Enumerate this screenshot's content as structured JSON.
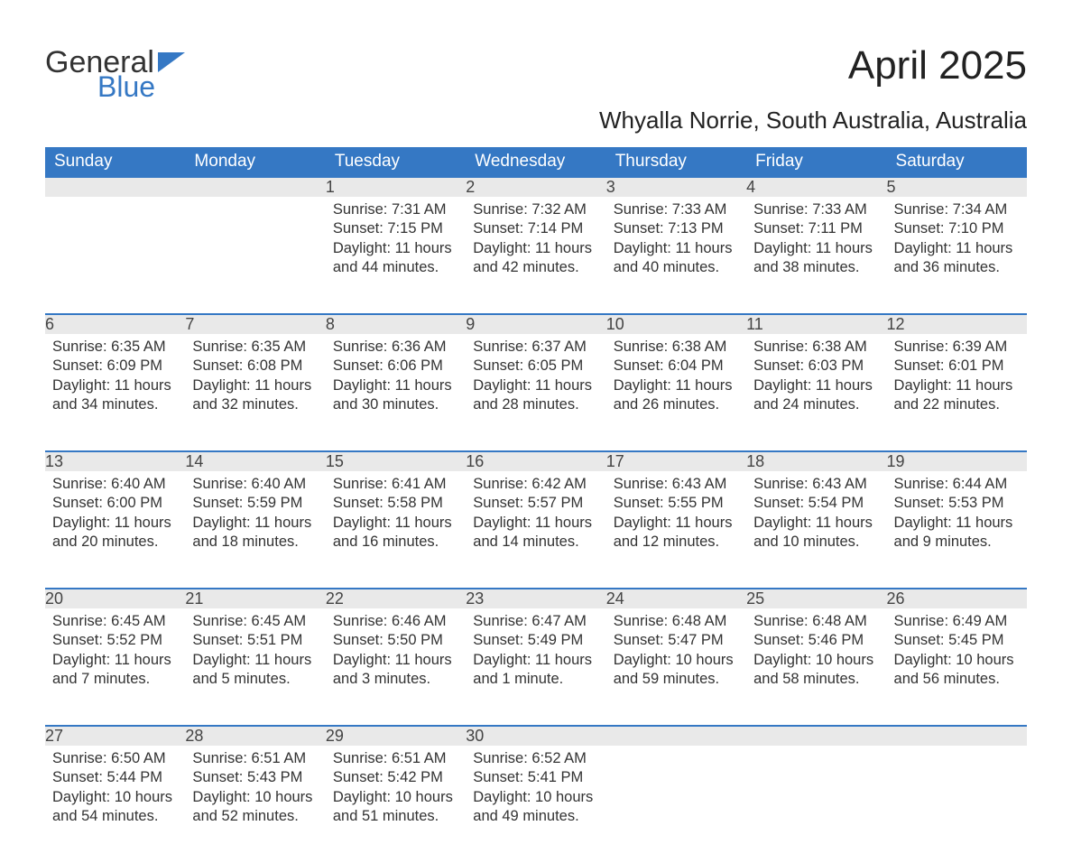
{
  "logo": {
    "word1": "General",
    "word2": "Blue",
    "accent": "#3578c4",
    "text_color": "#333333"
  },
  "title": "April 2025",
  "subtitle": "Whyalla Norrie, South Australia, Australia",
  "colors": {
    "header_bg": "#3578c4",
    "header_text": "#ffffff",
    "daynum_bg": "#e9e9e9",
    "row_divider": "#3578c4",
    "body_text": "#333333",
    "page_bg": "#ffffff"
  },
  "fonts": {
    "title_size": 44,
    "subtitle_size": 26,
    "header_size": 19,
    "daynum_size": 18,
    "body_size": 16.5
  },
  "days_of_week": [
    "Sunday",
    "Monday",
    "Tuesday",
    "Wednesday",
    "Thursday",
    "Friday",
    "Saturday"
  ],
  "weeks": [
    [
      null,
      null,
      {
        "n": "1",
        "sr": "Sunrise: 7:31 AM",
        "ss": "Sunset: 7:15 PM",
        "dl": "Daylight: 11 hours and 44 minutes."
      },
      {
        "n": "2",
        "sr": "Sunrise: 7:32 AM",
        "ss": "Sunset: 7:14 PM",
        "dl": "Daylight: 11 hours and 42 minutes."
      },
      {
        "n": "3",
        "sr": "Sunrise: 7:33 AM",
        "ss": "Sunset: 7:13 PM",
        "dl": "Daylight: 11 hours and 40 minutes."
      },
      {
        "n": "4",
        "sr": "Sunrise: 7:33 AM",
        "ss": "Sunset: 7:11 PM",
        "dl": "Daylight: 11 hours and 38 minutes."
      },
      {
        "n": "5",
        "sr": "Sunrise: 7:34 AM",
        "ss": "Sunset: 7:10 PM",
        "dl": "Daylight: 11 hours and 36 minutes."
      }
    ],
    [
      {
        "n": "6",
        "sr": "Sunrise: 6:35 AM",
        "ss": "Sunset: 6:09 PM",
        "dl": "Daylight: 11 hours and 34 minutes."
      },
      {
        "n": "7",
        "sr": "Sunrise: 6:35 AM",
        "ss": "Sunset: 6:08 PM",
        "dl": "Daylight: 11 hours and 32 minutes."
      },
      {
        "n": "8",
        "sr": "Sunrise: 6:36 AM",
        "ss": "Sunset: 6:06 PM",
        "dl": "Daylight: 11 hours and 30 minutes."
      },
      {
        "n": "9",
        "sr": "Sunrise: 6:37 AM",
        "ss": "Sunset: 6:05 PM",
        "dl": "Daylight: 11 hours and 28 minutes."
      },
      {
        "n": "10",
        "sr": "Sunrise: 6:38 AM",
        "ss": "Sunset: 6:04 PM",
        "dl": "Daylight: 11 hours and 26 minutes."
      },
      {
        "n": "11",
        "sr": "Sunrise: 6:38 AM",
        "ss": "Sunset: 6:03 PM",
        "dl": "Daylight: 11 hours and 24 minutes."
      },
      {
        "n": "12",
        "sr": "Sunrise: 6:39 AM",
        "ss": "Sunset: 6:01 PM",
        "dl": "Daylight: 11 hours and 22 minutes."
      }
    ],
    [
      {
        "n": "13",
        "sr": "Sunrise: 6:40 AM",
        "ss": "Sunset: 6:00 PM",
        "dl": "Daylight: 11 hours and 20 minutes."
      },
      {
        "n": "14",
        "sr": "Sunrise: 6:40 AM",
        "ss": "Sunset: 5:59 PM",
        "dl": "Daylight: 11 hours and 18 minutes."
      },
      {
        "n": "15",
        "sr": "Sunrise: 6:41 AM",
        "ss": "Sunset: 5:58 PM",
        "dl": "Daylight: 11 hours and 16 minutes."
      },
      {
        "n": "16",
        "sr": "Sunrise: 6:42 AM",
        "ss": "Sunset: 5:57 PM",
        "dl": "Daylight: 11 hours and 14 minutes."
      },
      {
        "n": "17",
        "sr": "Sunrise: 6:43 AM",
        "ss": "Sunset: 5:55 PM",
        "dl": "Daylight: 11 hours and 12 minutes."
      },
      {
        "n": "18",
        "sr": "Sunrise: 6:43 AM",
        "ss": "Sunset: 5:54 PM",
        "dl": "Daylight: 11 hours and 10 minutes."
      },
      {
        "n": "19",
        "sr": "Sunrise: 6:44 AM",
        "ss": "Sunset: 5:53 PM",
        "dl": "Daylight: 11 hours and 9 minutes."
      }
    ],
    [
      {
        "n": "20",
        "sr": "Sunrise: 6:45 AM",
        "ss": "Sunset: 5:52 PM",
        "dl": "Daylight: 11 hours and 7 minutes."
      },
      {
        "n": "21",
        "sr": "Sunrise: 6:45 AM",
        "ss": "Sunset: 5:51 PM",
        "dl": "Daylight: 11 hours and 5 minutes."
      },
      {
        "n": "22",
        "sr": "Sunrise: 6:46 AM",
        "ss": "Sunset: 5:50 PM",
        "dl": "Daylight: 11 hours and 3 minutes."
      },
      {
        "n": "23",
        "sr": "Sunrise: 6:47 AM",
        "ss": "Sunset: 5:49 PM",
        "dl": "Daylight: 11 hours and 1 minute."
      },
      {
        "n": "24",
        "sr": "Sunrise: 6:48 AM",
        "ss": "Sunset: 5:47 PM",
        "dl": "Daylight: 10 hours and 59 minutes."
      },
      {
        "n": "25",
        "sr": "Sunrise: 6:48 AM",
        "ss": "Sunset: 5:46 PM",
        "dl": "Daylight: 10 hours and 58 minutes."
      },
      {
        "n": "26",
        "sr": "Sunrise: 6:49 AM",
        "ss": "Sunset: 5:45 PM",
        "dl": "Daylight: 10 hours and 56 minutes."
      }
    ],
    [
      {
        "n": "27",
        "sr": "Sunrise: 6:50 AM",
        "ss": "Sunset: 5:44 PM",
        "dl": "Daylight: 10 hours and 54 minutes."
      },
      {
        "n": "28",
        "sr": "Sunrise: 6:51 AM",
        "ss": "Sunset: 5:43 PM",
        "dl": "Daylight: 10 hours and 52 minutes."
      },
      {
        "n": "29",
        "sr": "Sunrise: 6:51 AM",
        "ss": "Sunset: 5:42 PM",
        "dl": "Daylight: 10 hours and 51 minutes."
      },
      {
        "n": "30",
        "sr": "Sunrise: 6:52 AM",
        "ss": "Sunset: 5:41 PM",
        "dl": "Daylight: 10 hours and 49 minutes."
      },
      null,
      null,
      null
    ]
  ]
}
